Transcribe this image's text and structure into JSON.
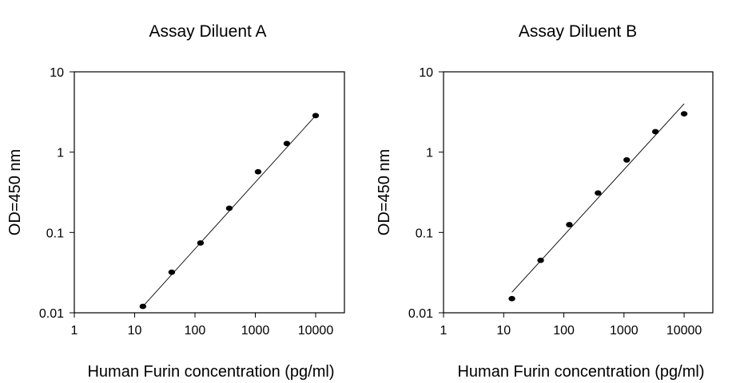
{
  "chart_data": [
    {
      "type": "scatter",
      "title": "Assay Diluent A",
      "xlabel": "Human Furin concentration (pg/ml)",
      "ylabel": "OD=450 nm",
      "x_scale": "log",
      "y_scale": "log",
      "xlim": [
        1,
        30000
      ],
      "ylim": [
        0.01,
        10
      ],
      "x_ticks": [
        "1",
        "10",
        "100",
        "1000",
        "10000"
      ],
      "y_ticks": [
        "0.01",
        "0.1",
        "1",
        "10"
      ],
      "grid": false,
      "series": [
        {
          "x": [
            13.7,
            41.2,
            123.5,
            370.4,
            1111.1,
            3333.3,
            10000
          ],
          "y": [
            0.012,
            0.032,
            0.074,
            0.2,
            0.57,
            1.28,
            2.85
          ]
        }
      ],
      "fit_line": {
        "x": [
          13.7,
          10000
        ],
        "y": [
          0.012,
          2.85
        ]
      }
    },
    {
      "type": "scatter",
      "title": "Assay Diluent B",
      "xlabel": "Human Furin concentration (pg/ml)",
      "ylabel": "OD=450 nm",
      "x_scale": "log",
      "y_scale": "log",
      "xlim": [
        1,
        30000
      ],
      "ylim": [
        0.01,
        10
      ],
      "x_ticks": [
        "1",
        "10",
        "100",
        "1000",
        "10000"
      ],
      "y_ticks": [
        "0.01",
        "0.1",
        "1",
        "10"
      ],
      "grid": false,
      "series": [
        {
          "x": [
            13.7,
            41.2,
            123.5,
            370.4,
            1111.1,
            3333.3,
            10000
          ],
          "y": [
            0.015,
            0.045,
            0.125,
            0.31,
            0.8,
            1.8,
            3.0
          ]
        }
      ],
      "fit_line": {
        "x": [
          13.7,
          10000
        ],
        "y": [
          0.018,
          4.0
        ]
      }
    }
  ]
}
